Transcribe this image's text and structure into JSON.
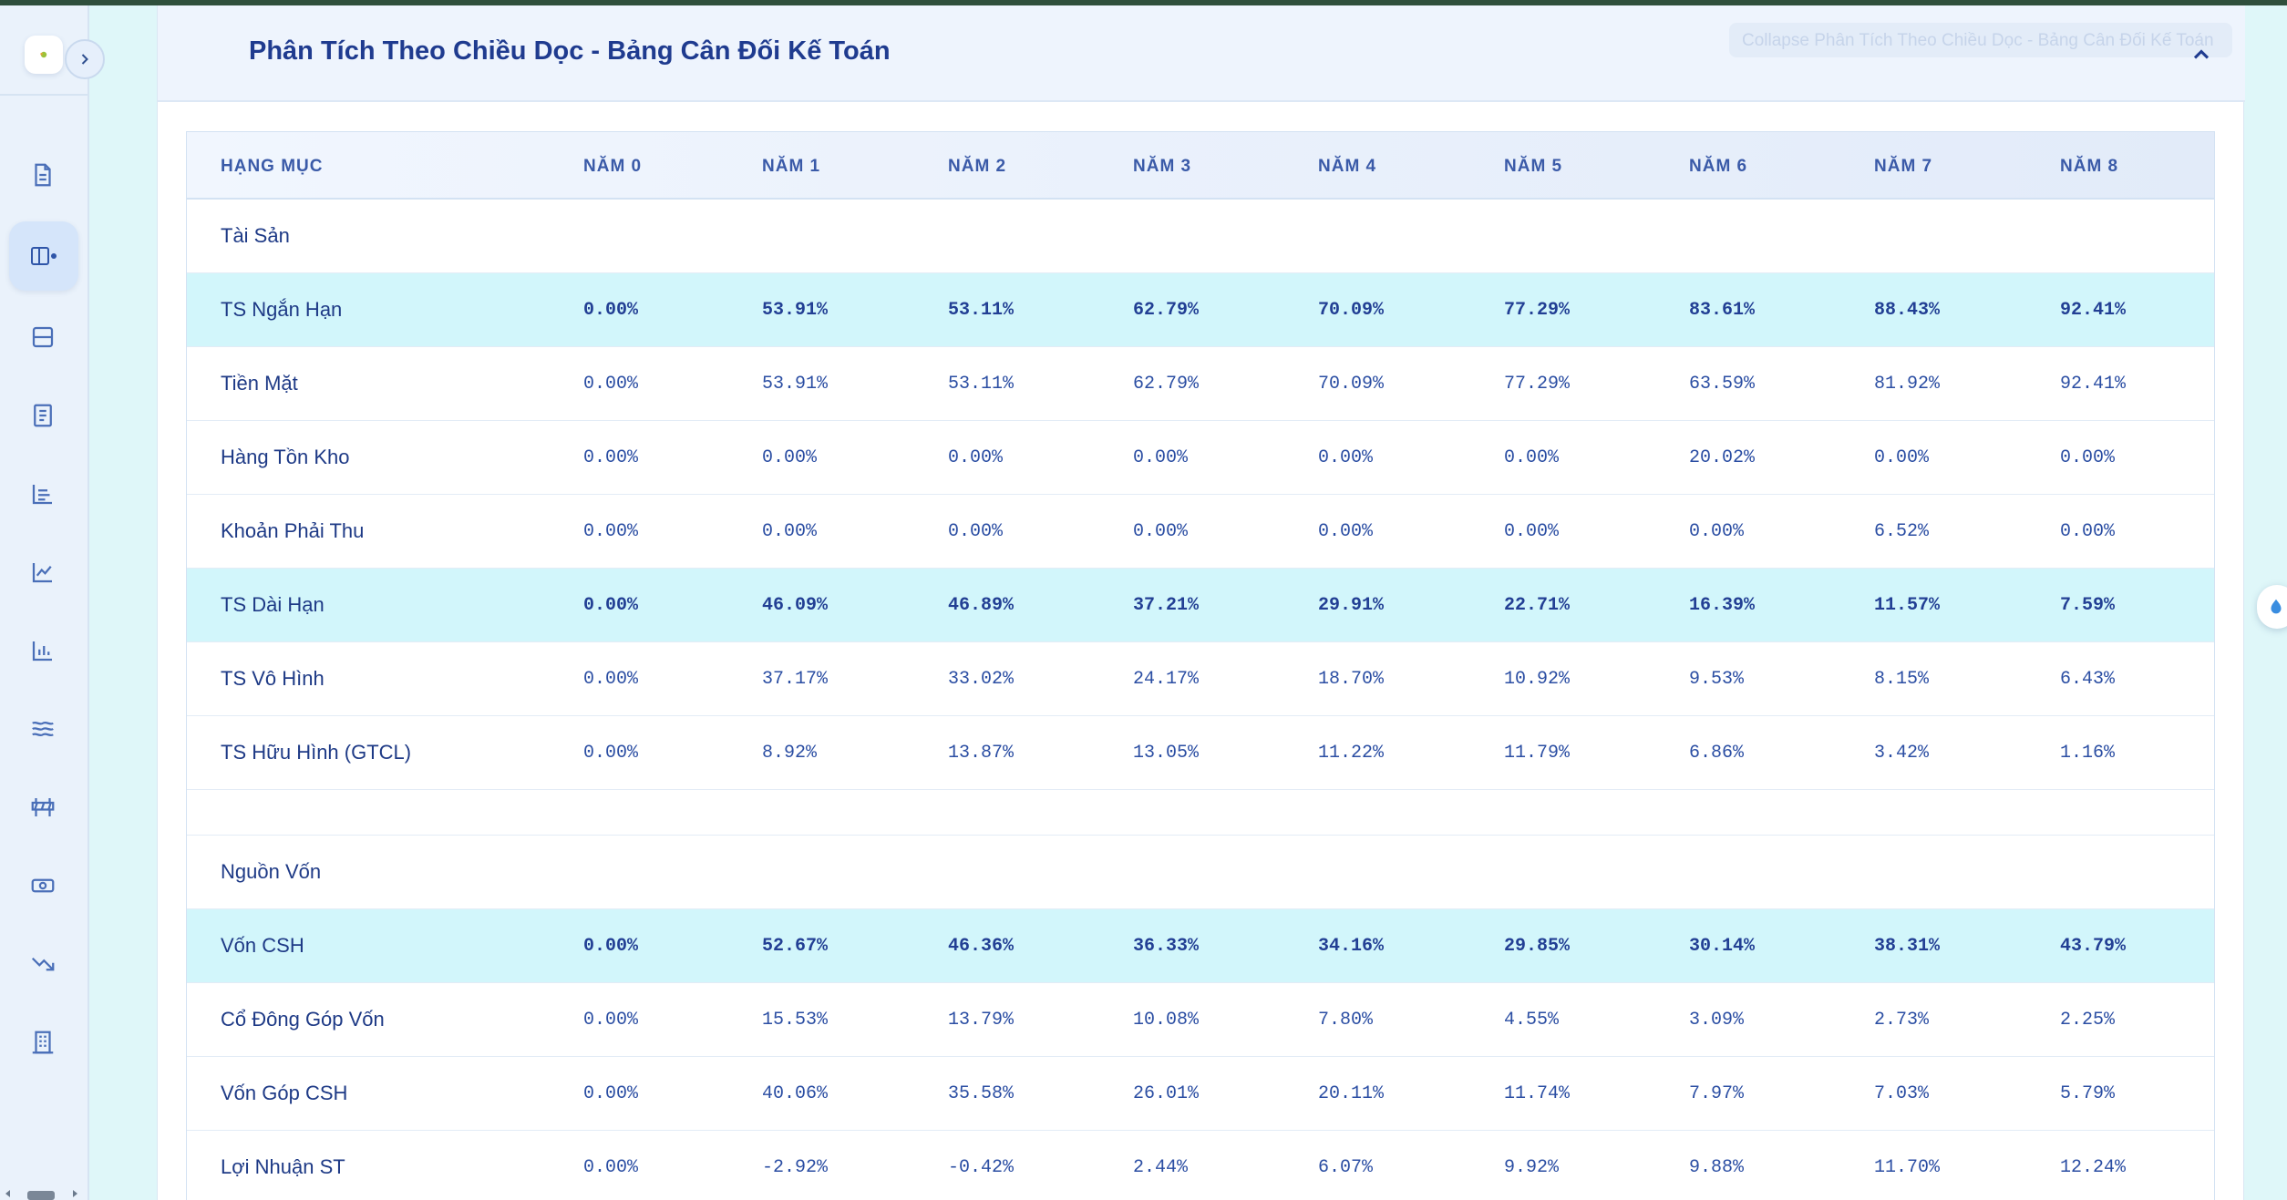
{
  "panel": {
    "title": "Phân Tích Theo Chiều Dọc - Bảng Cân Đối Kế Toán",
    "collapse_tooltip": "Collapse Phân Tích Theo Chiều Dọc - Bảng Cân Đối Kế Toán"
  },
  "sidebar": {
    "icons": [
      "document-icon",
      "layout-columns-icon",
      "layout-rows-icon",
      "report-icon",
      "bar-list-icon",
      "line-chart-icon",
      "bar-chart-icon",
      "waves-icon",
      "barrier-icon",
      "cash-icon",
      "trend-down-icon",
      "building-icon"
    ],
    "active_index": 1
  },
  "table": {
    "headers": [
      "HẠNG MỤC",
      "NĂM 0",
      "NĂM 1",
      "NĂM 2",
      "NĂM 3",
      "NĂM 4",
      "NĂM 5",
      "NĂM 6",
      "NĂM 7",
      "NĂM 8"
    ],
    "rows": [
      {
        "label": "Tài Sản",
        "type": "section",
        "values": []
      },
      {
        "label": "TS Ngắn Hạn",
        "type": "highlight",
        "values": [
          "0.00%",
          "53.91%",
          "53.11%",
          "62.79%",
          "70.09%",
          "77.29%",
          "83.61%",
          "88.43%",
          "92.41%"
        ]
      },
      {
        "label": "Tiền Mặt",
        "type": "normal",
        "values": [
          "0.00%",
          "53.91%",
          "53.11%",
          "62.79%",
          "70.09%",
          "77.29%",
          "63.59%",
          "81.92%",
          "92.41%"
        ]
      },
      {
        "label": "Hàng Tồn Kho",
        "type": "normal",
        "values": [
          "0.00%",
          "0.00%",
          "0.00%",
          "0.00%",
          "0.00%",
          "0.00%",
          "20.02%",
          "0.00%",
          "0.00%"
        ]
      },
      {
        "label": "Khoản Phải Thu",
        "type": "normal",
        "values": [
          "0.00%",
          "0.00%",
          "0.00%",
          "0.00%",
          "0.00%",
          "0.00%",
          "0.00%",
          "6.52%",
          "0.00%"
        ]
      },
      {
        "label": "TS Dài Hạn",
        "type": "highlight",
        "values": [
          "0.00%",
          "46.09%",
          "46.89%",
          "37.21%",
          "29.91%",
          "22.71%",
          "16.39%",
          "11.57%",
          "7.59%"
        ]
      },
      {
        "label": "TS Vô Hình",
        "type": "normal",
        "values": [
          "0.00%",
          "37.17%",
          "33.02%",
          "24.17%",
          "18.70%",
          "10.92%",
          "9.53%",
          "8.15%",
          "6.43%"
        ]
      },
      {
        "label": "TS Hữu Hình (GTCL)",
        "type": "normal",
        "values": [
          "0.00%",
          "8.92%",
          "13.87%",
          "13.05%",
          "11.22%",
          "11.79%",
          "6.86%",
          "3.42%",
          "1.16%"
        ]
      },
      {
        "label": "",
        "type": "spacer",
        "values": []
      },
      {
        "label": "Nguồn Vốn",
        "type": "section",
        "values": []
      },
      {
        "label": "Vốn CSH",
        "type": "highlight",
        "values": [
          "0.00%",
          "52.67%",
          "46.36%",
          "36.33%",
          "34.16%",
          "29.85%",
          "30.14%",
          "38.31%",
          "43.79%"
        ]
      },
      {
        "label": "Cổ Đông Góp Vốn",
        "type": "normal",
        "values": [
          "0.00%",
          "15.53%",
          "13.79%",
          "10.08%",
          "7.80%",
          "4.55%",
          "3.09%",
          "2.73%",
          "2.25%"
        ]
      },
      {
        "label": "Vốn Góp CSH",
        "type": "normal",
        "values": [
          "0.00%",
          "40.06%",
          "35.58%",
          "26.01%",
          "20.11%",
          "11.74%",
          "7.97%",
          "7.03%",
          "5.79%"
        ]
      },
      {
        "label": "Lợi Nhuận ST",
        "type": "normal",
        "values": [
          "0.00%",
          "-2.92%",
          "-0.42%",
          "2.44%",
          "6.07%",
          "9.92%",
          "9.88%",
          "11.70%",
          "12.24%"
        ]
      }
    ]
  },
  "colors": {
    "accent": "#1f3b8f",
    "highlight_row": "#d2f6fb",
    "sidebar_bg": "#eaf2fb",
    "page_bg": "#dff7f9"
  }
}
